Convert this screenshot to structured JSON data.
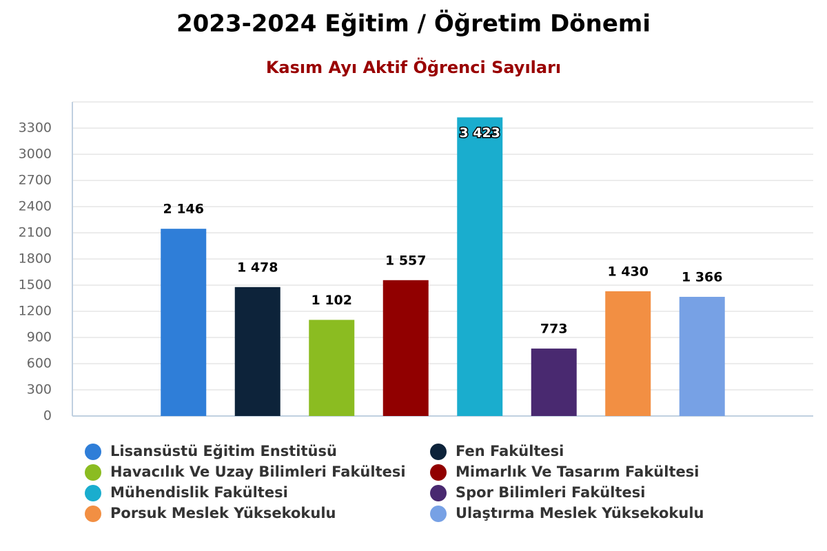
{
  "chart_data": {
    "type": "bar",
    "title": "2023-2024 Eğitim / Öğretim Dönemi",
    "subtitle": "Kasım Ayı Aktif Öğrenci Sayıları",
    "ylim": [
      0,
      3600
    ],
    "yticks": [
      0,
      300,
      600,
      900,
      1200,
      1500,
      1800,
      2100,
      2400,
      2700,
      3000,
      3300
    ],
    "grid": true,
    "series": [
      {
        "name": "Lisansüstü Eğitim Enstitüsü",
        "color": "#2f7ed8",
        "values": [
          2146
        ],
        "value_labels": [
          "2 146"
        ]
      },
      {
        "name": "Fen Fakültesi",
        "color": "#0d233a",
        "values": [
          1478
        ],
        "value_labels": [
          "1 478"
        ]
      },
      {
        "name": "Havacılık Ve Uzay Bilimleri Fakültesi",
        "color": "#8bbc21",
        "values": [
          1102
        ],
        "value_labels": [
          "1 102"
        ]
      },
      {
        "name": "Mimarlık Ve Tasarım Fakültesi",
        "color": "#910000",
        "values": [
          1557
        ],
        "value_labels": [
          "1 557"
        ]
      },
      {
        "name": "Mühendislik Fakültesi",
        "color": "#1aadce",
        "values": [
          3423
        ],
        "value_labels": [
          "3 423"
        ]
      },
      {
        "name": "Spor Bilimleri Fakültesi",
        "color": "#492970",
        "values": [
          773
        ],
        "value_labels": [
          "773"
        ]
      },
      {
        "name": "Porsuk Meslek Yüksekokulu",
        "color": "#f28f43",
        "values": [
          1430
        ],
        "value_labels": [
          "1 430"
        ]
      },
      {
        "name": "Ulaştırma Meslek Yüksekokulu",
        "color": "#77a1e5",
        "values": [
          1366
        ],
        "value_labels": [
          "1 366"
        ]
      }
    ]
  }
}
